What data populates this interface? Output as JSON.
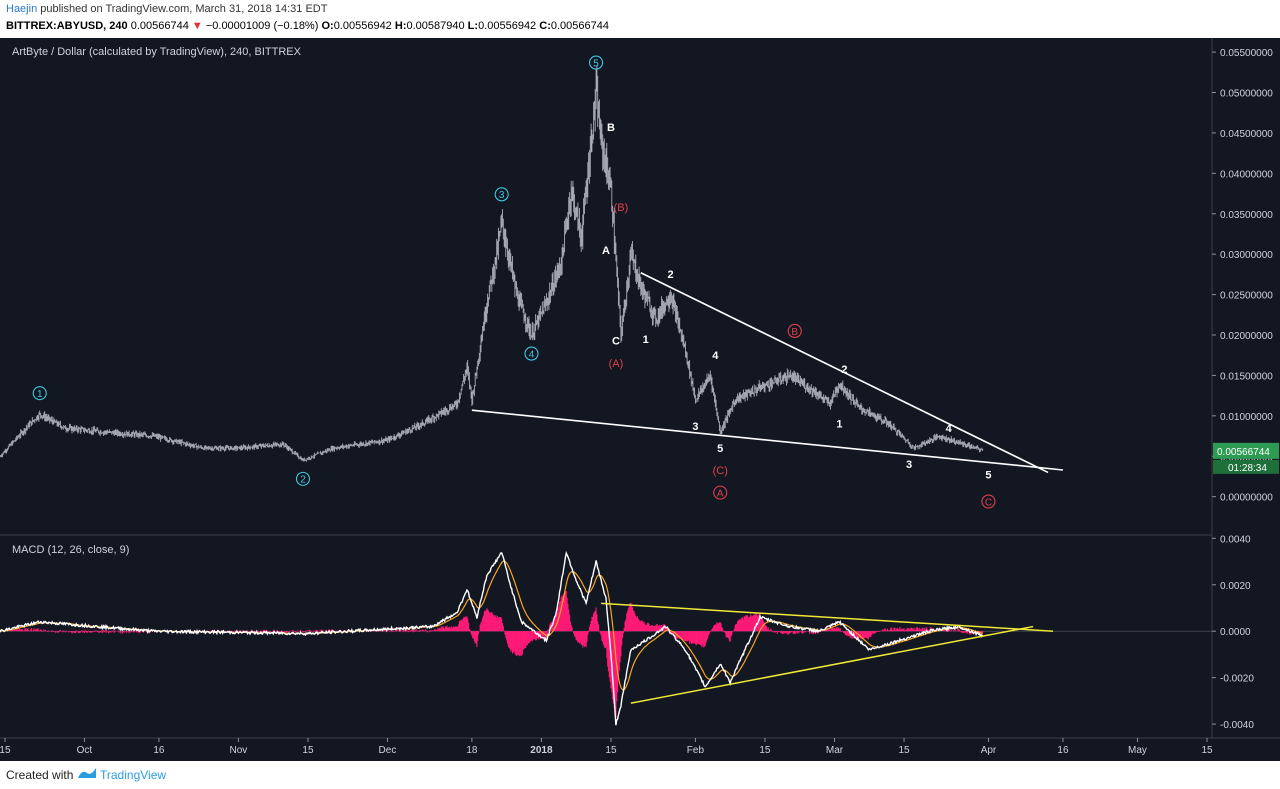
{
  "header": {
    "author": "Haejin",
    "published_text": "published on TradingView.com, March 31, 2018 14:31 EDT",
    "symbol": "BITTREX:ABYUSD, 240",
    "last": "0.00566744",
    "change": "−0.00001009 (−0.18%)",
    "o_label": "O:",
    "o_value": "0.00556942",
    "h_label": "H:",
    "h_value": "0.00587940",
    "l_label": "L:",
    "l_value": "0.00556942",
    "c_label": "C:",
    "c_value": "0.00566744"
  },
  "footer": {
    "created_with": "Created with",
    "brand": "TradingView"
  },
  "colors": {
    "background": "#131722",
    "candle": "#a9aeb8",
    "trendline": "#ffffff",
    "macd_trendline": "#f0e836",
    "histogram": "#ff1a77",
    "macd_line": "#ffffff",
    "signal_line": "#f5a623",
    "wave_cyan": "#43c6e0",
    "wave_red": "#e0404a",
    "price_badge": "#2e9b52"
  },
  "chart_data": [
    {
      "type": "candlestick",
      "title": "ArtByte / Dollar (calculated by TradingView), 240, BITTREX",
      "ylim": [
        -0.004,
        0.056
      ],
      "ticks": [
        "0.00000000",
        "0.00500000",
        "0.01000000",
        "0.01500000",
        "0.02000000",
        "0.02500000",
        "0.03000000",
        "0.03500000",
        "0.04000000",
        "0.04500000",
        "0.05000000",
        "0.05500000"
      ],
      "tick_values": [
        0.0,
        0.005,
        0.01,
        0.015,
        0.02,
        0.025,
        0.03,
        0.035,
        0.04,
        0.045,
        0.05,
        0.055
      ],
      "current_price": "0.00566744",
      "countdown": "01:28:34",
      "x_labels": [
        "15",
        "Oct",
        "16",
        "Nov",
        "15",
        "Dec",
        "18",
        "2018",
        "15",
        "Feb",
        "15",
        "Mar",
        "15",
        "Apr",
        "16",
        "May",
        "15"
      ],
      "x_label_dates": [
        "2017-09-15",
        "2017-10-01",
        "2017-10-16",
        "2017-11-01",
        "2017-11-15",
        "2017-12-01",
        "2017-12-18",
        "2018-01-01",
        "2018-01-15",
        "2018-02-01",
        "2018-02-15",
        "2018-03-01",
        "2018-03-15",
        "2018-04-01",
        "2018-04-16",
        "2018-05-01",
        "2018-05-15"
      ],
      "x_range": [
        "2017-09-14",
        "2018-05-16"
      ],
      "price_path": [
        [
          "2017-09-14",
          0.005
        ],
        [
          "2017-09-20",
          0.009
        ],
        [
          "2017-09-22",
          0.0102
        ],
        [
          "2017-09-27",
          0.0085
        ],
        [
          "2017-10-05",
          0.008
        ],
        [
          "2017-10-15",
          0.0075
        ],
        [
          "2017-10-25",
          0.006
        ],
        [
          "2017-11-01",
          0.006
        ],
        [
          "2017-11-10",
          0.0065
        ],
        [
          "2017-11-14",
          0.0045
        ],
        [
          "2017-11-20",
          0.006
        ],
        [
          "2017-12-01",
          0.007
        ],
        [
          "2017-12-08",
          0.009
        ],
        [
          "2017-12-15",
          0.0115
        ],
        [
          "2017-12-17",
          0.016
        ],
        [
          "2017-12-18",
          0.012
        ],
        [
          "2017-12-21",
          0.024
        ],
        [
          "2017-12-23",
          0.03
        ],
        [
          "2017-12-24",
          0.034
        ],
        [
          "2017-12-27",
          0.025
        ],
        [
          "2017-12-30",
          0.02
        ],
        [
          "2018-01-02",
          0.024
        ],
        [
          "2018-01-05",
          0.029
        ],
        [
          "2018-01-07",
          0.038
        ],
        [
          "2018-01-09",
          0.032
        ],
        [
          "2018-01-12",
          0.05
        ],
        [
          "2018-01-13",
          0.044
        ],
        [
          "2018-01-15",
          0.038
        ],
        [
          "2018-01-17",
          0.02
        ],
        [
          "2018-01-19",
          0.03
        ],
        [
          "2018-01-21",
          0.026
        ],
        [
          "2018-01-24",
          0.022
        ],
        [
          "2018-01-27",
          0.025
        ],
        [
          "2018-01-30",
          0.018
        ],
        [
          "2018-02-01",
          0.012
        ],
        [
          "2018-02-04",
          0.015
        ],
        [
          "2018-02-06",
          0.008
        ],
        [
          "2018-02-09",
          0.012
        ],
        [
          "2018-02-14",
          0.0135
        ],
        [
          "2018-02-20",
          0.015
        ],
        [
          "2018-02-25",
          0.013
        ],
        [
          "2018-02-28",
          0.0115
        ],
        [
          "2018-03-02",
          0.014
        ],
        [
          "2018-03-06",
          0.011
        ],
        [
          "2018-03-12",
          0.009
        ],
        [
          "2018-03-17",
          0.006
        ],
        [
          "2018-03-22",
          0.0075
        ],
        [
          "2018-03-27",
          0.0065
        ],
        [
          "2018-03-31",
          0.0057
        ]
      ],
      "annotations": [
        {
          "text": "1",
          "date": "2017-09-22",
          "price": 0.0128,
          "style": "cyan-circle"
        },
        {
          "text": "2",
          "date": "2017-11-14",
          "price": 0.0022,
          "style": "cyan-circle"
        },
        {
          "text": "3",
          "date": "2017-12-24",
          "price": 0.0374,
          "style": "cyan-circle"
        },
        {
          "text": "4",
          "date": "2017-12-30",
          "price": 0.0177,
          "style": "cyan-circle"
        },
        {
          "text": "5",
          "date": "2018-01-12",
          "price": 0.0537,
          "style": "cyan-circle"
        },
        {
          "text": "B",
          "date": "2018-01-15",
          "price": 0.0457,
          "style": "white"
        },
        {
          "text": "(B)",
          "date": "2018-01-17",
          "price": 0.0358,
          "style": "red"
        },
        {
          "text": "A",
          "date": "2018-01-14",
          "price": 0.0305,
          "style": "white"
        },
        {
          "text": "C",
          "date": "2018-01-16",
          "price": 0.0193,
          "style": "white"
        },
        {
          "text": "(A)",
          "date": "2018-01-16",
          "price": 0.0165,
          "style": "red"
        },
        {
          "text": "1",
          "date": "2018-01-22",
          "price": 0.0195,
          "style": "white"
        },
        {
          "text": "2",
          "date": "2018-01-27",
          "price": 0.0275,
          "style": "white"
        },
        {
          "text": "3",
          "date": "2018-02-01",
          "price": 0.0087,
          "style": "white"
        },
        {
          "text": "4",
          "date": "2018-02-05",
          "price": 0.0175,
          "style": "white"
        },
        {
          "text": "5",
          "date": "2018-02-06",
          "price": 0.006,
          "style": "white"
        },
        {
          "text": "(C)",
          "date": "2018-02-06",
          "price": 0.0033,
          "style": "red"
        },
        {
          "text": "A",
          "date": "2018-02-06",
          "price": 0.0005,
          "style": "red-circle"
        },
        {
          "text": "B",
          "date": "2018-02-21",
          "price": 0.0205,
          "style": "red-circle"
        },
        {
          "text": "2",
          "date": "2018-03-03",
          "price": 0.0158,
          "style": "white"
        },
        {
          "text": "1",
          "date": "2018-03-02",
          "price": 0.009,
          "style": "white"
        },
        {
          "text": "3",
          "date": "2018-03-16",
          "price": 0.004,
          "style": "white"
        },
        {
          "text": "4",
          "date": "2018-03-24",
          "price": 0.0085,
          "style": "white"
        },
        {
          "text": "5",
          "date": "2018-04-01",
          "price": 0.0027,
          "style": "white"
        },
        {
          "text": "C",
          "date": "2018-04-01",
          "price": -0.0006,
          "style": "red-circle"
        }
      ],
      "trendlines": [
        {
          "from": [
            "2017-12-18",
            0.0107
          ],
          "to": [
            "2018-04-16",
            0.0033
          ]
        },
        {
          "from": [
            "2018-01-21",
            0.0277
          ],
          "to": [
            "2018-04-13",
            0.003
          ]
        }
      ]
    },
    {
      "type": "macd",
      "title": "MACD (12, 26, close, 9)",
      "ylim": [
        -0.0046,
        0.0041
      ],
      "ticks": [
        "0.0040",
        "0.0020",
        "0.0000",
        "-0.0020",
        "-0.0040"
      ],
      "tick_values": [
        0.004,
        0.002,
        0.0,
        -0.002,
        -0.004
      ],
      "macd_path": [
        [
          "2017-09-14",
          0.0
        ],
        [
          "2017-09-22",
          0.0004
        ],
        [
          "2017-10-15",
          0.0
        ],
        [
          "2017-11-15",
          -0.0001
        ],
        [
          "2017-12-10",
          0.0002
        ],
        [
          "2017-12-15",
          0.0008
        ],
        [
          "2017-12-17",
          0.0018
        ],
        [
          "2017-12-19",
          0.0006
        ],
        [
          "2017-12-21",
          0.0024
        ],
        [
          "2017-12-24",
          0.0034
        ],
        [
          "2017-12-26",
          0.0018
        ],
        [
          "2017-12-28",
          0.0004
        ],
        [
          "2018-01-02",
          -0.0004
        ],
        [
          "2018-01-04",
          0.0008
        ],
        [
          "2018-01-06",
          0.0034
        ],
        [
          "2018-01-08",
          0.0022
        ],
        [
          "2018-01-10",
          0.0012
        ],
        [
          "2018-01-12",
          0.003
        ],
        [
          "2018-01-14",
          0.0014
        ],
        [
          "2018-01-15",
          -0.001
        ],
        [
          "2018-01-16",
          -0.004
        ],
        [
          "2018-01-17",
          -0.0032
        ],
        [
          "2018-01-19",
          -0.0008
        ],
        [
          "2018-01-22",
          -0.0004
        ],
        [
          "2018-01-26",
          0.0002
        ],
        [
          "2018-01-30",
          -0.0008
        ],
        [
          "2018-02-03",
          -0.0024
        ],
        [
          "2018-02-06",
          -0.0014
        ],
        [
          "2018-02-08",
          -0.0022
        ],
        [
          "2018-02-11",
          -0.0008
        ],
        [
          "2018-02-14",
          0.0006
        ],
        [
          "2018-02-20",
          0.0002
        ],
        [
          "2018-02-26",
          0.0
        ],
        [
          "2018-03-02",
          0.0004
        ],
        [
          "2018-03-08",
          -0.0008
        ],
        [
          "2018-03-14",
          -0.0004
        ],
        [
          "2018-03-20",
          0.0
        ],
        [
          "2018-03-26",
          0.0002
        ],
        [
          "2018-03-31",
          -0.0002
        ]
      ],
      "trendlines": [
        {
          "from": [
            "2018-01-13",
            0.0012
          ],
          "to": [
            "2018-04-14",
            0.0
          ]
        },
        {
          "from": [
            "2018-01-19",
            -0.0031
          ],
          "to": [
            "2018-04-10",
            0.0002
          ]
        }
      ]
    }
  ]
}
